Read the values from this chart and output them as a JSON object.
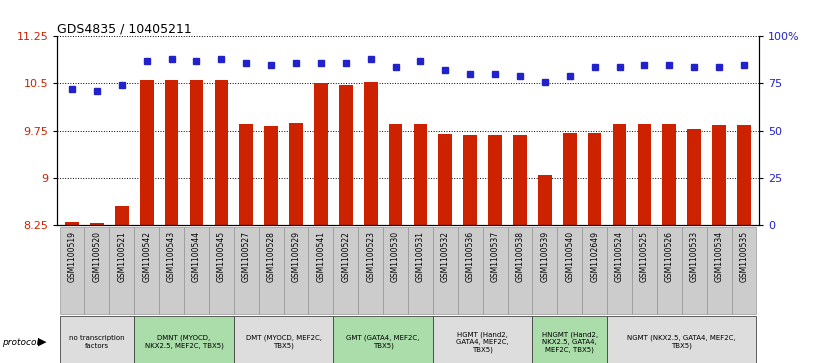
{
  "title": "GDS4835 / 10405211",
  "samples": [
    "GSM1100519",
    "GSM1100520",
    "GSM1100521",
    "GSM1100542",
    "GSM1100543",
    "GSM1100544",
    "GSM1100545",
    "GSM1100527",
    "GSM1100528",
    "GSM1100529",
    "GSM1100541",
    "GSM1100522",
    "GSM1100523",
    "GSM1100530",
    "GSM1100531",
    "GSM1100532",
    "GSM1100536",
    "GSM1100537",
    "GSM1100538",
    "GSM1100539",
    "GSM1100540",
    "GSM1102649",
    "GSM1100524",
    "GSM1100525",
    "GSM1100526",
    "GSM1100533",
    "GSM1100534",
    "GSM1100535"
  ],
  "bar_values": [
    8.3,
    8.28,
    8.55,
    10.55,
    10.55,
    10.55,
    10.55,
    9.85,
    9.82,
    9.88,
    10.5,
    10.48,
    10.52,
    9.86,
    9.86,
    9.7,
    9.68,
    9.68,
    9.68,
    9.05,
    9.72,
    9.72,
    9.86,
    9.86,
    9.86,
    9.78,
    9.84,
    9.84
  ],
  "percentile_values": [
    72,
    71,
    74,
    87,
    88,
    87,
    88,
    86,
    85,
    86,
    86,
    86,
    88,
    84,
    87,
    82,
    80,
    80,
    79,
    76,
    79,
    84,
    84,
    85,
    85,
    84,
    84,
    85
  ],
  "bar_color": "#cc2200",
  "marker_color": "#2222cc",
  "ylim_left": [
    8.25,
    11.25
  ],
  "ylim_right": [
    0,
    100
  ],
  "yticks_left": [
    8.25,
    9.0,
    9.75,
    10.5,
    11.25
  ],
  "ytick_labels_left": [
    "8.25",
    "9",
    "9.75",
    "10.5",
    "11.25"
  ],
  "yticks_right": [
    0,
    25,
    50,
    75,
    100
  ],
  "ytick_labels_right": [
    "0",
    "25",
    "50",
    "75",
    "100%"
  ],
  "protocol_groups": [
    {
      "label": "no transcription\nfactors",
      "start": 0,
      "end": 3,
      "color": "#dddddd"
    },
    {
      "label": "DMNT (MYOCD,\nNKX2.5, MEF2C, TBX5)",
      "start": 3,
      "end": 7,
      "color": "#aaddaa"
    },
    {
      "label": "DMT (MYOCD, MEF2C,\nTBX5)",
      "start": 7,
      "end": 11,
      "color": "#dddddd"
    },
    {
      "label": "GMT (GATA4, MEF2C,\nTBX5)",
      "start": 11,
      "end": 15,
      "color": "#aaddaa"
    },
    {
      "label": "HGMT (Hand2,\nGATA4, MEF2C,\nTBX5)",
      "start": 15,
      "end": 19,
      "color": "#dddddd"
    },
    {
      "label": "HNGMT (Hand2,\nNKX2.5, GATA4,\nMEF2C, TBX5)",
      "start": 19,
      "end": 22,
      "color": "#aaddaa"
    },
    {
      "label": "NGMT (NKX2.5, GATA4, MEF2C,\nTBX5)",
      "start": 22,
      "end": 28,
      "color": "#dddddd"
    }
  ]
}
